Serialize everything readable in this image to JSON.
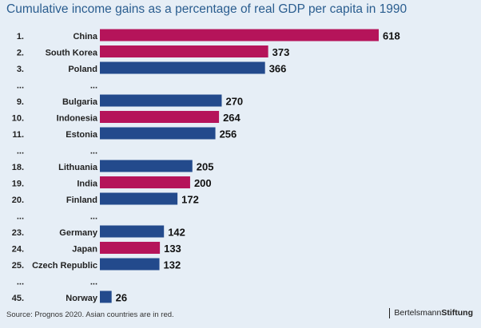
{
  "chart_data": {
    "type": "bar",
    "orientation": "horizontal",
    "title": "Cumulative income gains as a percentage of real GDP per capita in 1990",
    "xlim": [
      0,
      618
    ],
    "rows": [
      {
        "rank": "1.",
        "name": "China",
        "value": 618,
        "asian": true
      },
      {
        "rank": "2.",
        "name": "South Korea",
        "value": 373,
        "asian": true
      },
      {
        "rank": "3.",
        "name": "Poland",
        "value": 366,
        "asian": false
      },
      {
        "rank": "...",
        "name": "...",
        "value": null,
        "gap": true
      },
      {
        "rank": "9.",
        "name": "Bulgaria",
        "value": 270,
        "asian": false
      },
      {
        "rank": "10.",
        "name": "Indonesia",
        "value": 264,
        "asian": true
      },
      {
        "rank": "11.",
        "name": "Estonia",
        "value": 256,
        "asian": false
      },
      {
        "rank": "...",
        "name": "...",
        "value": null,
        "gap": true
      },
      {
        "rank": "18.",
        "name": "Lithuania",
        "value": 205,
        "asian": false
      },
      {
        "rank": "19.",
        "name": "India",
        "value": 200,
        "asian": true
      },
      {
        "rank": "20.",
        "name": "Finland",
        "value": 172,
        "asian": false
      },
      {
        "rank": "...",
        "name": "...",
        "value": null,
        "gap": true
      },
      {
        "rank": "23.",
        "name": "Germany",
        "value": 142,
        "asian": false
      },
      {
        "rank": "24.",
        "name": "Japan",
        "value": 133,
        "asian": true
      },
      {
        "rank": "25.",
        "name": "Czech Republic",
        "value": 132,
        "asian": false
      },
      {
        "rank": "...",
        "name": "...",
        "value": null,
        "gap": true
      },
      {
        "rank": "45.",
        "name": "Norway",
        "value": 26,
        "asian": false
      }
    ],
    "colors": {
      "asian": "#b5145a",
      "other": "#234a8c"
    }
  },
  "footer": {
    "source": "Source: Prognos 2020. Asian countries are in red.",
    "brand_regular": "Bertelsmann",
    "brand_bold": "Stiftung"
  }
}
